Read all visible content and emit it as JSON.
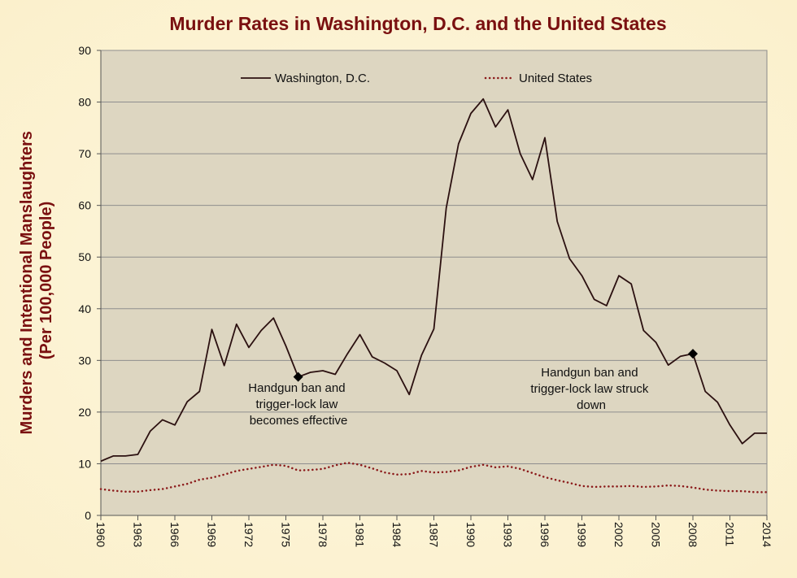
{
  "chart_data": {
    "type": "line",
    "title": "Murder Rates in Washington, D.C. and the United States",
    "ylabel_lines": [
      "Murders and Intentional Manslaughters",
      "(Per 100,000 People)"
    ],
    "xlabel": "",
    "ylim": [
      0,
      90
    ],
    "yticks": [
      "0",
      "10",
      "20",
      "30",
      "40",
      "50",
      "60",
      "70",
      "80",
      "90"
    ],
    "xlim": [
      1960,
      2014
    ],
    "xticks": [
      "1960",
      "1963",
      "1966",
      "1969",
      "1972",
      "1975",
      "1978",
      "1981",
      "1984",
      "1987",
      "1990",
      "1993",
      "1996",
      "1999",
      "2002",
      "2005",
      "2008",
      "2011",
      "2014"
    ],
    "grid": true,
    "legend_position": "top",
    "plot_background": "#ddd6c1",
    "page_background": "#fcf4d4",
    "x": [
      1960,
      1961,
      1962,
      1963,
      1964,
      1965,
      1966,
      1967,
      1968,
      1969,
      1970,
      1971,
      1972,
      1973,
      1974,
      1975,
      1976,
      1977,
      1978,
      1979,
      1980,
      1981,
      1982,
      1983,
      1984,
      1985,
      1986,
      1987,
      1988,
      1989,
      1990,
      1991,
      1992,
      1993,
      1994,
      1995,
      1996,
      1997,
      1998,
      1999,
      2000,
      2001,
      2002,
      2003,
      2004,
      2005,
      2006,
      2007,
      2008,
      2009,
      2010,
      2011,
      2012,
      2013,
      2014
    ],
    "series": [
      {
        "name": "Washington, D.C.",
        "style": "solid",
        "color": "#2b1010",
        "values": [
          10.5,
          11.5,
          11.5,
          11.8,
          16.3,
          18.5,
          17.5,
          22.0,
          24.0,
          36.0,
          29.0,
          37.0,
          32.5,
          35.8,
          38.2,
          32.8,
          26.8,
          27.7,
          28.0,
          27.3,
          31.3,
          35.0,
          30.7,
          29.5,
          28.0,
          23.4,
          31.0,
          36.1,
          59.5,
          71.9,
          77.8,
          80.6,
          75.2,
          78.5,
          70.0,
          65.0,
          73.1,
          56.9,
          49.7,
          46.4,
          41.8,
          40.6,
          46.4,
          44.8,
          35.8,
          33.5,
          29.1,
          30.8,
          31.3,
          24.0,
          21.9,
          17.5,
          13.9,
          15.9,
          15.9
        ]
      },
      {
        "name": "United States",
        "style": "dotted",
        "color": "#8b1a1a",
        "values": [
          5.1,
          4.8,
          4.6,
          4.6,
          4.9,
          5.1,
          5.6,
          6.1,
          6.9,
          7.3,
          7.9,
          8.6,
          9.0,
          9.4,
          9.8,
          9.6,
          8.7,
          8.8,
          9.0,
          9.7,
          10.2,
          9.8,
          9.1,
          8.3,
          7.9,
          8.0,
          8.6,
          8.3,
          8.4,
          8.7,
          9.4,
          9.8,
          9.3,
          9.5,
          9.0,
          8.2,
          7.4,
          6.8,
          6.3,
          5.7,
          5.5,
          5.6,
          5.6,
          5.7,
          5.5,
          5.6,
          5.8,
          5.7,
          5.4,
          5.0,
          4.8,
          4.7,
          4.7,
          4.5,
          4.5
        ]
      }
    ],
    "markers": [
      {
        "x": 1976,
        "y": 26.8
      },
      {
        "x": 2008,
        "y": 31.3
      }
    ],
    "annotations": [
      {
        "lines": [
          "Handgun  ban  and",
          "trigger-lock  law",
          "becomes  effective"
        ]
      },
      {
        "lines": [
          "Handgun  ban  and",
          "trigger-lock  law  struck",
          "down"
        ]
      }
    ]
  }
}
